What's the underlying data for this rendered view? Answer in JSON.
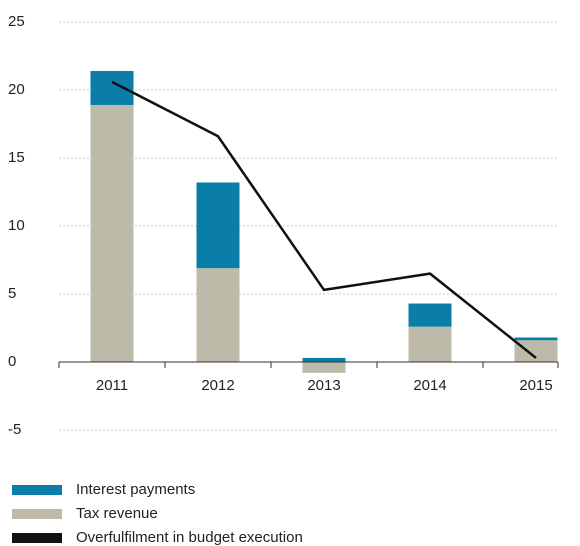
{
  "chart_data": {
    "type": "bar",
    "stacked": true,
    "categories": [
      "2011",
      "2012",
      "2013",
      "2014",
      "2015"
    ],
    "series": [
      {
        "name": "Interest payments",
        "color": "#0a7ea8",
        "values": [
          2.5,
          6.3,
          0.3,
          1.7,
          0.2
        ]
      },
      {
        "name": "Tax revenue",
        "color": "#bdbaa9",
        "values": [
          18.9,
          6.9,
          -0.8,
          2.6,
          1.6
        ]
      },
      {
        "name": "Overfulfilment in budget execution",
        "type": "line",
        "color": "#111111",
        "values": [
          20.6,
          16.6,
          5.3,
          6.5,
          0.3
        ]
      }
    ],
    "ylim": [
      -5,
      25
    ],
    "yticks": [
      -5,
      0,
      5,
      10,
      15,
      20,
      25
    ],
    "grid": true
  }
}
